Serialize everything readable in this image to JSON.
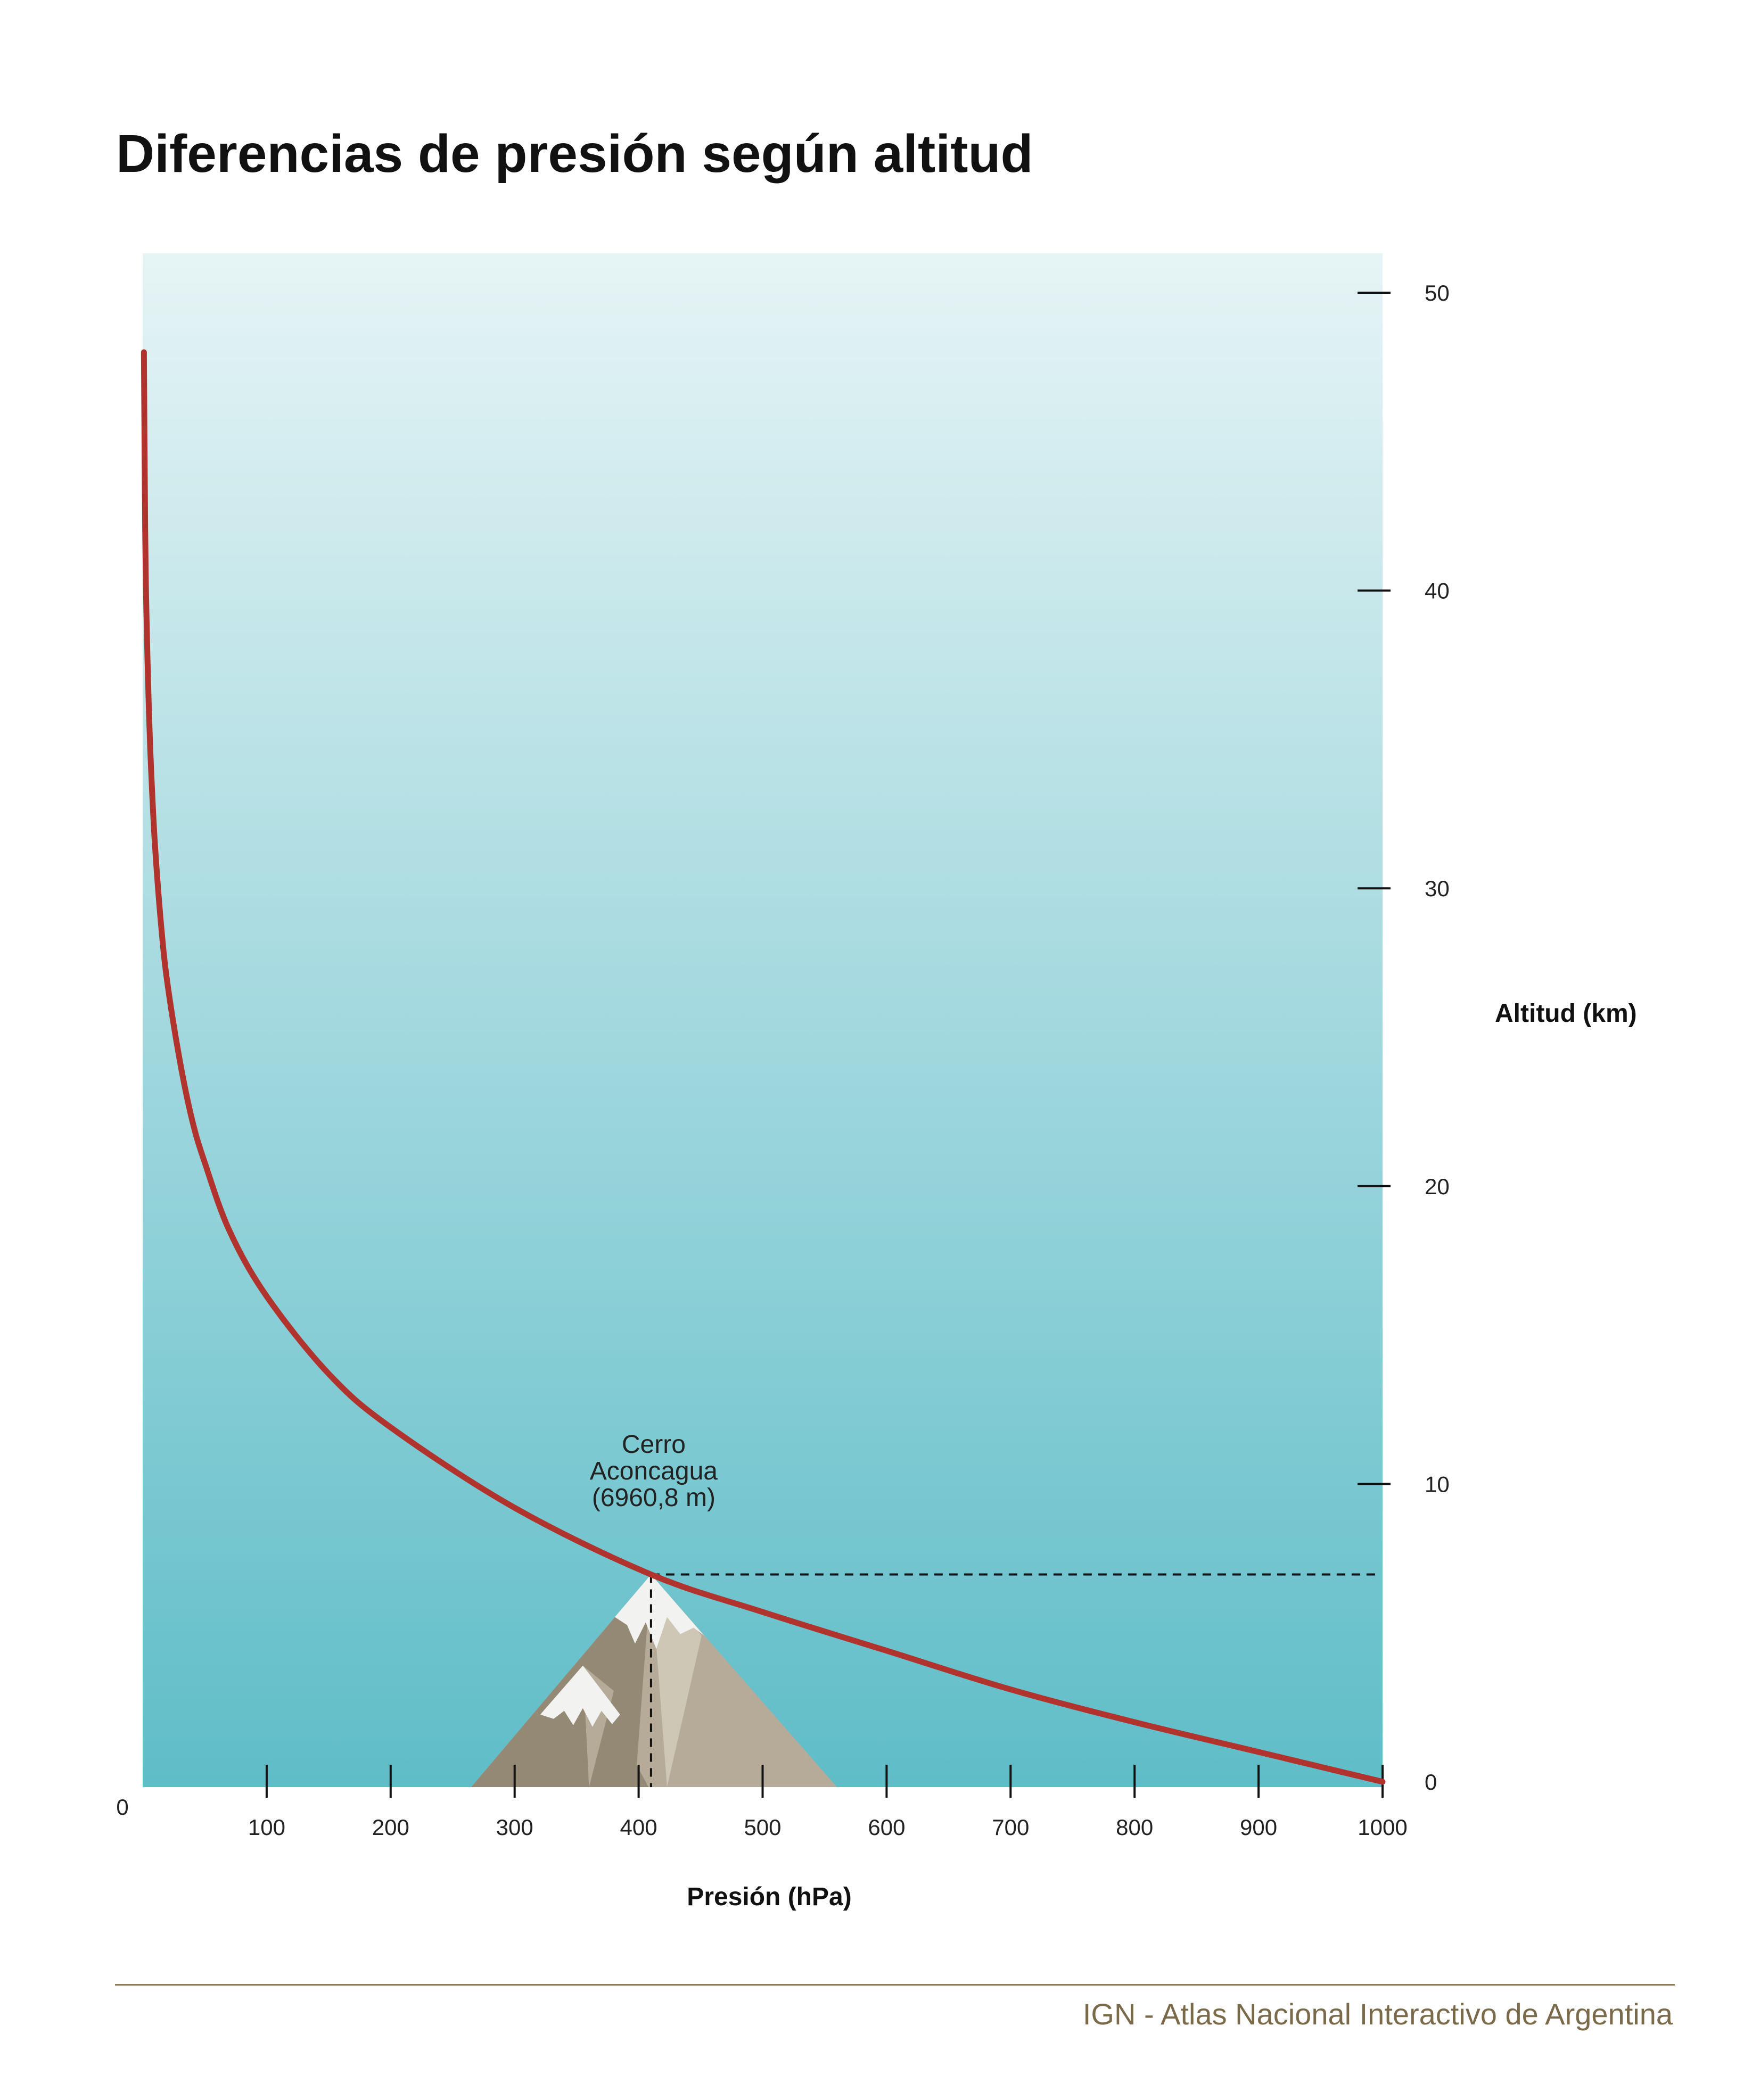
{
  "title": "Diferencias de presión según altitud",
  "source": "IGN - Atlas Nacional Interactivo de Argentina",
  "colors": {
    "sky_top": "#e6f4f5",
    "sky_bottom": "#5fbdc8",
    "curve": "#b0332e",
    "mountain_light": "#b5ab98",
    "mountain_dark": "#948974",
    "snow": "#f2f2f0"
  },
  "chart_data": {
    "type": "line",
    "title": "Diferencias de presión según altitud",
    "xlabel": "Presión (hPa)",
    "ylabel": "Altitud (km)",
    "xlim": [
      0,
      1000
    ],
    "ylim": [
      0,
      50
    ],
    "x_ticks": [
      "100",
      "200",
      "300",
      "400",
      "500",
      "600",
      "700",
      "800",
      "900",
      "1000"
    ],
    "x_origin_label": "0",
    "y_ticks": [
      "0",
      "10",
      "20",
      "30",
      "40",
      "50"
    ],
    "y_axis_side": "right",
    "grid": false,
    "series": [
      {
        "x": [
          1000,
          900,
          800,
          700,
          600,
          500,
          410,
          300,
          200,
          150,
          100,
          70,
          50,
          40,
          30,
          20,
          15,
          10,
          7,
          5,
          3,
          2,
          1
        ],
        "y": [
          0,
          1.0,
          2.0,
          3.1,
          4.4,
          5.7,
          6.96,
          9.2,
          11.9,
          13.7,
          16.3,
          18.5,
          20.8,
          22.2,
          24.2,
          26.8,
          28.7,
          31.4,
          33.8,
          36.0,
          39.3,
          42.1,
          48.0
        ]
      }
    ],
    "annotation": {
      "lines": [
        "Cerro",
        "Aconcagua",
        "(6960,8 m)"
      ],
      "x": 410,
      "y": 6.96
    }
  }
}
